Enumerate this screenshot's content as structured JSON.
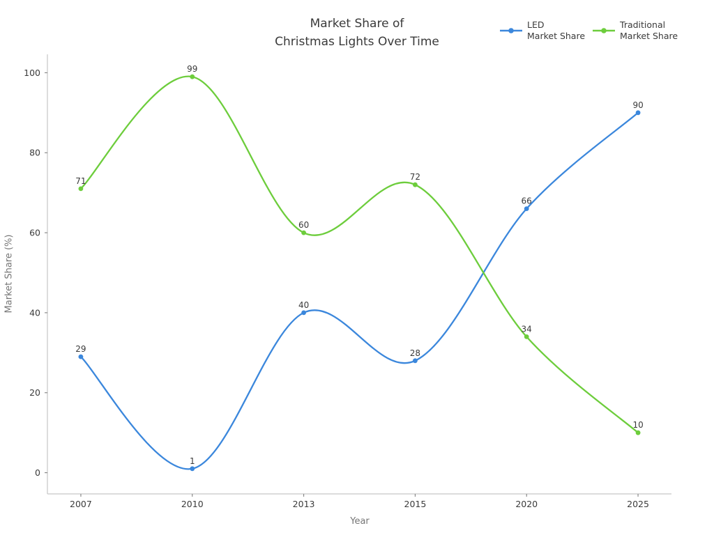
{
  "chart_data": {
    "type": "line",
    "title": "Market Share of\nChristmas Lights Over Time",
    "title_lines": [
      "Market Share of",
      "Christmas Lights Over Time"
    ],
    "xlabel": "Year",
    "ylabel": "Market Share (%)",
    "categories": [
      "2007",
      "2010",
      "2013",
      "2015",
      "2020",
      "2025"
    ],
    "series": [
      {
        "name": "LED Market Share",
        "legend_lines": [
          "LED",
          "Market Share"
        ],
        "color": "#3b87dc",
        "values": [
          29,
          1,
          40,
          28,
          66,
          90
        ]
      },
      {
        "name": "Traditional Market Share",
        "legend_lines": [
          "Traditional",
          "Market Share"
        ],
        "color": "#6dcd3c",
        "values": [
          71,
          99,
          60,
          72,
          34,
          10
        ]
      }
    ],
    "yticks": [
      0,
      20,
      40,
      60,
      80,
      100
    ],
    "ylim": [
      -5.3,
      104.6
    ],
    "grid": false,
    "legend_position": "top-right",
    "point_labels": true,
    "curve": "smooth-spline"
  },
  "colors": {
    "text_dark": "#3a3a3a",
    "axis_label_gray": "#757575",
    "spine_gray": "#c6c6c6",
    "tick_gray": "#808080",
    "background": "#ffffff"
  }
}
